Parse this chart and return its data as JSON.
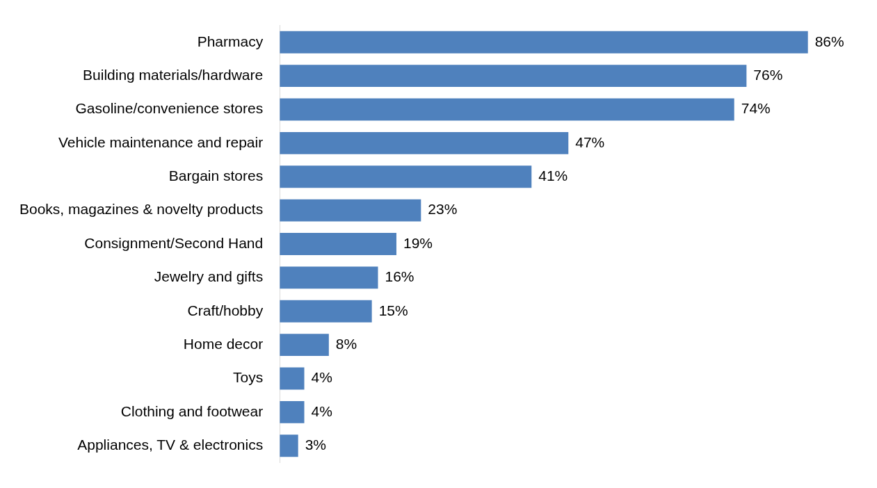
{
  "chart_data": {
    "type": "bar",
    "orientation": "horizontal",
    "categories": [
      "Pharmacy",
      "Building materials/hardware",
      "Gasoline/convenience stores",
      "Vehicle maintenance and repair",
      "Bargain stores",
      "Books, magazines & novelty products",
      "Consignment/Second Hand",
      "Jewelry and gifts",
      "Craft/hobby",
      "Home decor",
      "Toys",
      "Clothing and footwear",
      "Appliances, TV & electronics"
    ],
    "values": [
      86,
      76,
      74,
      47,
      41,
      23,
      19,
      16,
      15,
      8,
      4,
      4,
      3
    ],
    "value_labels": [
      "86%",
      "76%",
      "74%",
      "47%",
      "41%",
      "23%",
      "19%",
      "16%",
      "15%",
      "8%",
      "4%",
      "4%",
      "3%"
    ],
    "color": "#4f81bd"
  }
}
